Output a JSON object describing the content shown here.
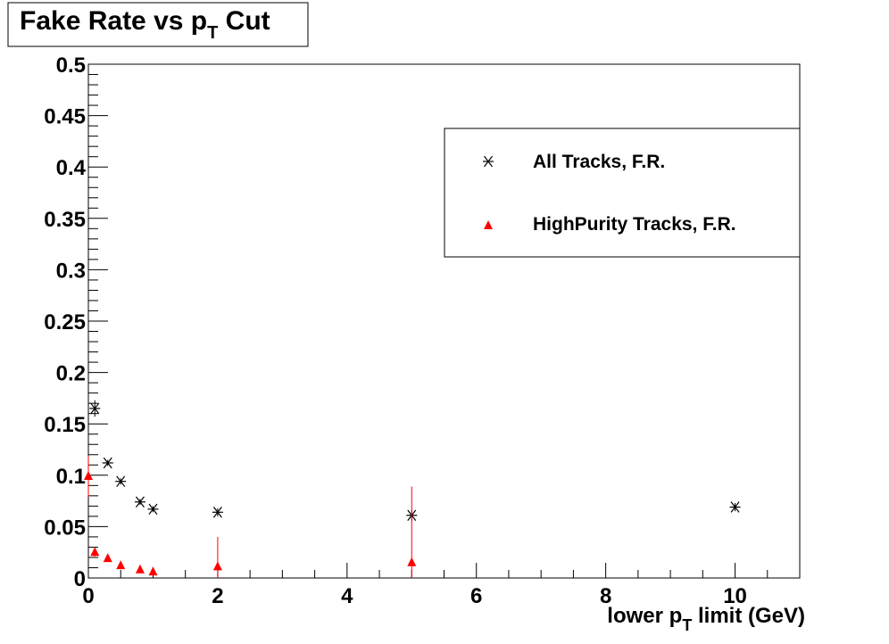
{
  "chart_data": {
    "type": "scatter",
    "title": {
      "main": "Fake Rate vs p",
      "sub": "T",
      "tail": " Cut"
    },
    "xlabel": {
      "main": "lower p",
      "sub": "T",
      "tail": " limit (GeV)"
    },
    "ylabel": "",
    "xlim": [
      0,
      11
    ],
    "ylim": [
      0,
      0.5
    ],
    "x_ticks": [
      0,
      2,
      4,
      6,
      8,
      10
    ],
    "y_ticks": [
      0,
      0.05,
      0.1,
      0.15,
      0.2,
      0.25,
      0.3,
      0.35,
      0.4,
      0.45,
      0.5
    ],
    "x_tick_labels": [
      "0",
      "2",
      "4",
      "6",
      "8",
      "10"
    ],
    "y_tick_labels": [
      "0",
      "0.05",
      "0.1",
      "0.15",
      "0.2",
      "0.25",
      "0.3",
      "0.35",
      "0.4",
      "0.45",
      "0.5"
    ],
    "grid": false,
    "legend_position": "top-right",
    "series": [
      {
        "name": "All Tracks, F.R.",
        "marker": "asterisk",
        "color": "#000000",
        "points": [
          {
            "x": 0.1,
            "y": 0.165,
            "err": 0.008
          },
          {
            "x": 0.3,
            "y": 0.112,
            "err": 0.003
          },
          {
            "x": 0.5,
            "y": 0.094,
            "err": 0.003
          },
          {
            "x": 0.8,
            "y": 0.074,
            "err": 0.003
          },
          {
            "x": 1.0,
            "y": 0.067,
            "err": 0.003
          },
          {
            "x": 2.0,
            "y": 0.064,
            "err": 0.004
          },
          {
            "x": 5.0,
            "y": 0.061,
            "err": 0.005
          },
          {
            "x": 10.0,
            "y": 0.069,
            "err": 0.004
          }
        ]
      },
      {
        "name": "HighPurity Tracks, F.R.",
        "marker": "triangle",
        "color": "#ff0000",
        "points": [
          {
            "x": 0.0,
            "y": 0.099,
            "err": 0.02
          },
          {
            "x": 0.1,
            "y": 0.025,
            "err": 0.004
          },
          {
            "x": 0.3,
            "y": 0.019,
            "err": 0.003
          },
          {
            "x": 0.5,
            "y": 0.012,
            "err": 0.003
          },
          {
            "x": 0.8,
            "y": 0.008,
            "err": 0.002
          },
          {
            "x": 1.0,
            "y": 0.006,
            "err": 0.002
          },
          {
            "x": 2.0,
            "y": 0.011,
            "err": 0.029
          },
          {
            "x": 5.0,
            "y": 0.015,
            "err": 0.074
          }
        ]
      }
    ]
  }
}
